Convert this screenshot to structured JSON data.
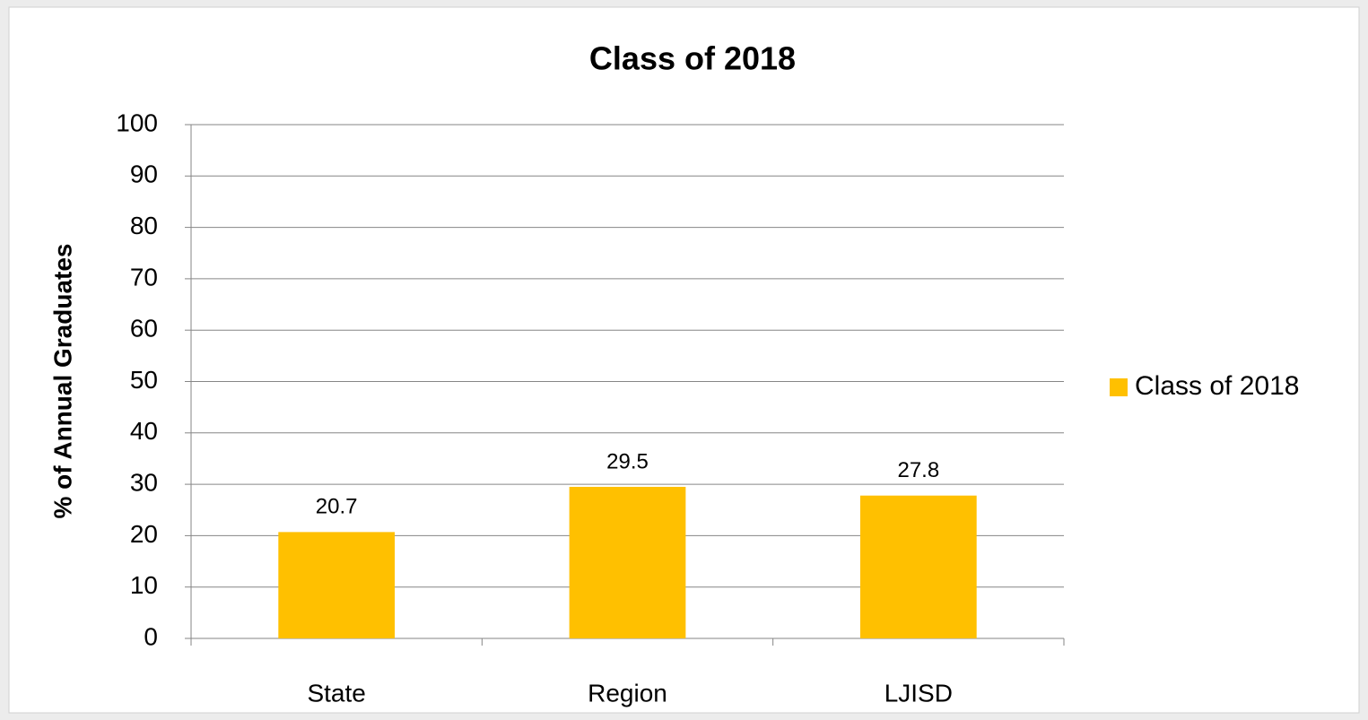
{
  "chart_data": {
    "type": "bar",
    "title": "Class of 2018",
    "y_label": "% of Annual Graduates",
    "categories": [
      "State",
      "Region",
      "LJISD"
    ],
    "series": [
      {
        "name": "Class of 2018",
        "color": "#ffc000",
        "values": [
          20.7,
          29.5,
          27.8
        ]
      }
    ],
    "ylim": [
      0,
      100
    ],
    "yticks": [
      0,
      10,
      20,
      30,
      40,
      50,
      60,
      70,
      80,
      90,
      100
    ],
    "grid": true,
    "legend": "right"
  }
}
